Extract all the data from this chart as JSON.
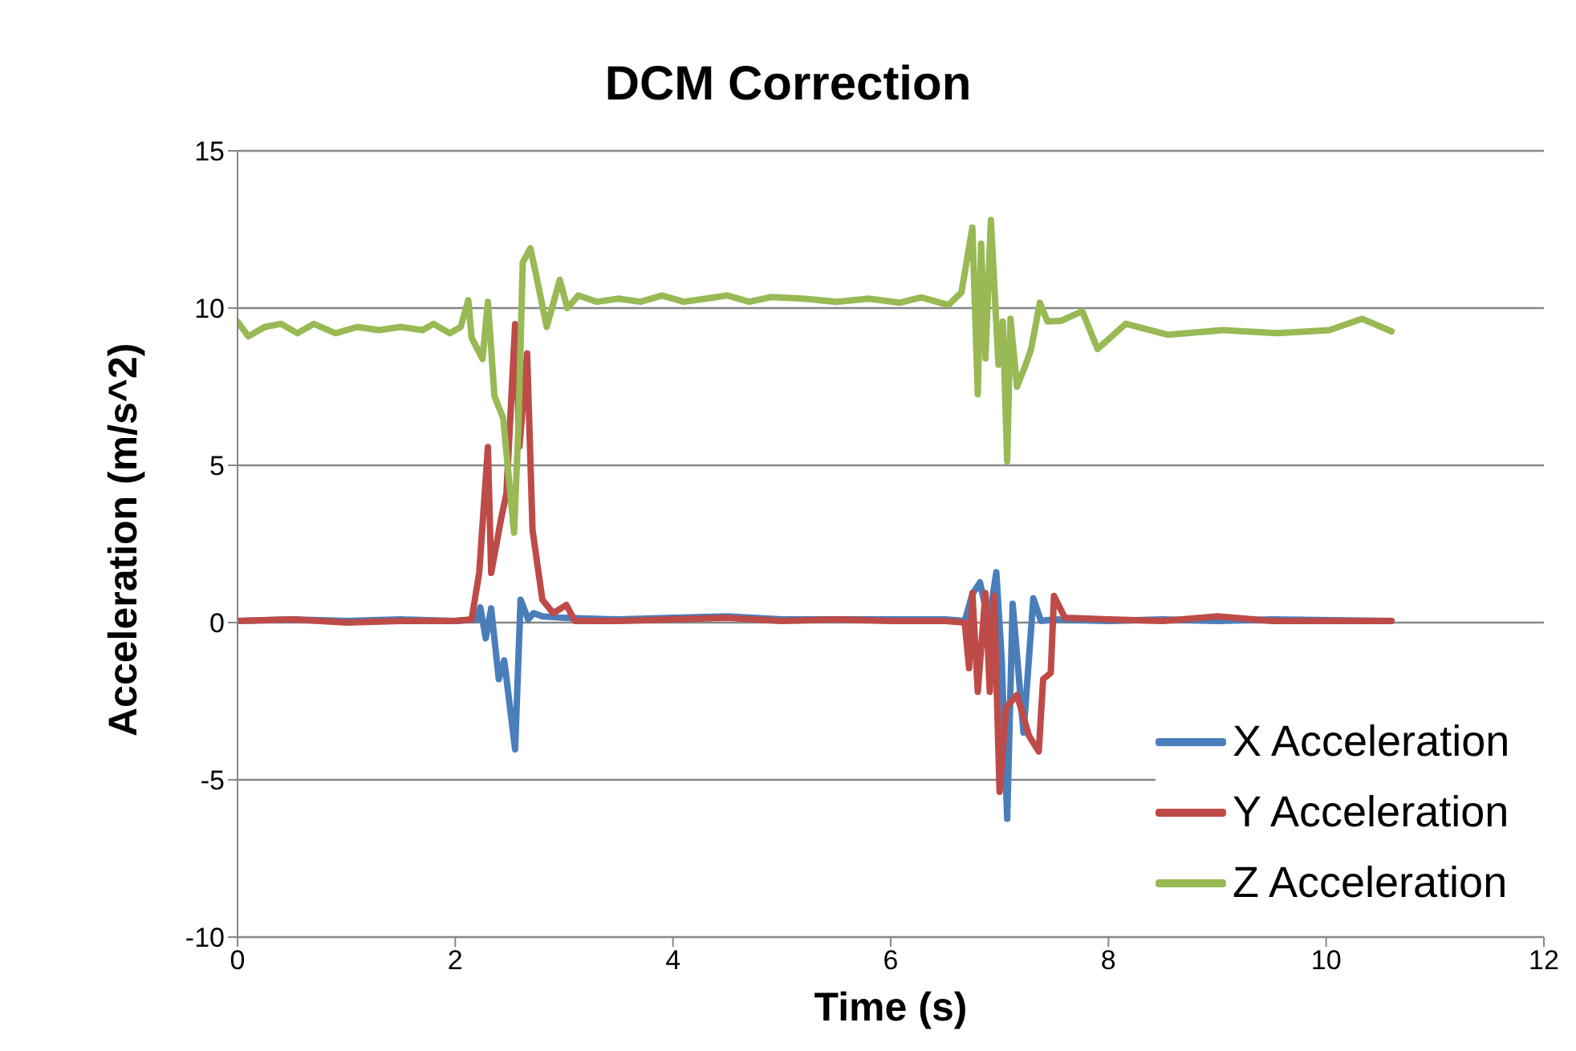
{
  "chart_data": {
    "type": "line",
    "title": "DCM Correction",
    "xlabel": "Time (s)",
    "ylabel": "Acceleration (m/s^2)",
    "xlim": [
      0,
      12
    ],
    "xticks": [
      0,
      2,
      4,
      6,
      8,
      10,
      12
    ],
    "ylim": [
      -10,
      15
    ],
    "yticks": [
      -10,
      -5,
      0,
      5,
      10,
      15
    ],
    "grid": "y",
    "legend": "bottom right",
    "marker": "none",
    "line_style": "solid",
    "series": [
      {
        "name": "X Acceleration",
        "color": "#4a7ebb",
        "x": [
          0,
          0.5,
          1,
          1.5,
          2,
          2.2,
          2.23,
          2.28,
          2.33,
          2.4,
          2.45,
          2.55,
          2.6,
          2.67,
          2.72,
          2.8,
          3,
          3.5,
          4,
          4.5,
          5,
          5.5,
          6,
          6.5,
          6.68,
          6.75,
          6.82,
          6.9,
          6.97,
          7.02,
          7.07,
          7.12,
          7.22,
          7.31,
          7.38,
          7.5,
          8,
          8.5,
          9,
          9.5,
          10.6
        ],
        "values": [
          0.05,
          0.1,
          0.05,
          0.1,
          0.05,
          0.1,
          0.48,
          -0.5,
          0.45,
          -1.8,
          -1.2,
          -4.03,
          0.73,
          0.1,
          0.3,
          0.2,
          0.15,
          0.1,
          0.15,
          0.2,
          0.1,
          0.1,
          0.1,
          0.1,
          0.05,
          0.9,
          1.28,
          0,
          1.6,
          -1.2,
          -6.24,
          0.6,
          -3.5,
          0.77,
          0.05,
          0.1,
          0.05,
          0.1,
          0.05,
          0.1,
          0.05
        ]
      },
      {
        "name": "Y Acceleration",
        "color": "#be4b48",
        "x": [
          0,
          0.5,
          1,
          1.5,
          2,
          2.15,
          2.22,
          2.3,
          2.33,
          2.42,
          2.47,
          2.55,
          2.59,
          2.66,
          2.71,
          2.8,
          2.9,
          3.02,
          3.1,
          3.5,
          4,
          4.5,
          5,
          5.5,
          6,
          6.5,
          6.68,
          6.72,
          6.75,
          6.8,
          6.87,
          6.91,
          6.95,
          7,
          7.06,
          7.16,
          7.27,
          7.36,
          7.4,
          7.47,
          7.5,
          7.6,
          8,
          8.5,
          9,
          9.5,
          10,
          10.6
        ],
        "values": [
          0.05,
          0.1,
          0,
          0.05,
          0.05,
          0.1,
          1.58,
          5.58,
          1.58,
          3.28,
          4.1,
          9.49,
          5.6,
          8.56,
          2.94,
          0.73,
          0.3,
          0.56,
          0.05,
          0.05,
          0.1,
          0.15,
          0.05,
          0.1,
          0.05,
          0.05,
          0,
          -1.45,
          0.94,
          -2.2,
          0.94,
          -2.2,
          0.85,
          -5.38,
          -2.7,
          -2.3,
          -3.6,
          -4.1,
          -1.8,
          -1.6,
          0.85,
          0.15,
          0.1,
          0.05,
          0.2,
          0.05,
          0.05,
          0.05
        ]
      },
      {
        "name": "Z Acceleration",
        "color": "#98b954",
        "x": [
          0,
          0.1,
          0.25,
          0.4,
          0.55,
          0.7,
          0.9,
          1.1,
          1.3,
          1.5,
          1.7,
          1.8,
          1.95,
          2.05,
          2.12,
          2.15,
          2.25,
          2.3,
          2.36,
          2.44,
          2.54,
          2.58,
          2.62,
          2.69,
          2.74,
          2.84,
          2.96,
          3.03,
          3.13,
          3.3,
          3.5,
          3.7,
          3.9,
          4.1,
          4.3,
          4.5,
          4.7,
          4.9,
          5.2,
          5.5,
          5.8,
          6.08,
          6.28,
          6.53,
          6.65,
          6.75,
          6.8,
          6.83,
          6.87,
          6.92,
          6.99,
          7.03,
          7.07,
          7.1,
          7.16,
          7.24,
          7.29,
          7.37,
          7.44,
          7.57,
          7.76,
          7.9,
          8.16,
          8.55,
          9.05,
          9.55,
          10.03,
          10.33,
          10.6
        ],
        "values": [
          9.57,
          9.1,
          9.4,
          9.5,
          9.2,
          9.5,
          9.2,
          9.4,
          9.3,
          9.4,
          9.3,
          9.5,
          9.2,
          9.4,
          10.25,
          9.06,
          8.38,
          10.2,
          7.2,
          6.5,
          2.86,
          6.2,
          11.45,
          11.9,
          11.1,
          9.4,
          10.9,
          10,
          10.4,
          10.2,
          10.3,
          10.2,
          10.4,
          10.2,
          10.3,
          10.4,
          10.2,
          10.35,
          10.3,
          10.2,
          10.3,
          10.17,
          10.34,
          10.1,
          10.5,
          12.56,
          7.26,
          12.05,
          8.4,
          12.8,
          8.2,
          9.57,
          5.13,
          9.66,
          7.5,
          8.2,
          8.7,
          10.17,
          9.57,
          9.6,
          9.9,
          8.7,
          9.5,
          9.15,
          9.3,
          9.2,
          9.3,
          9.66,
          9.26
        ]
      }
    ]
  }
}
